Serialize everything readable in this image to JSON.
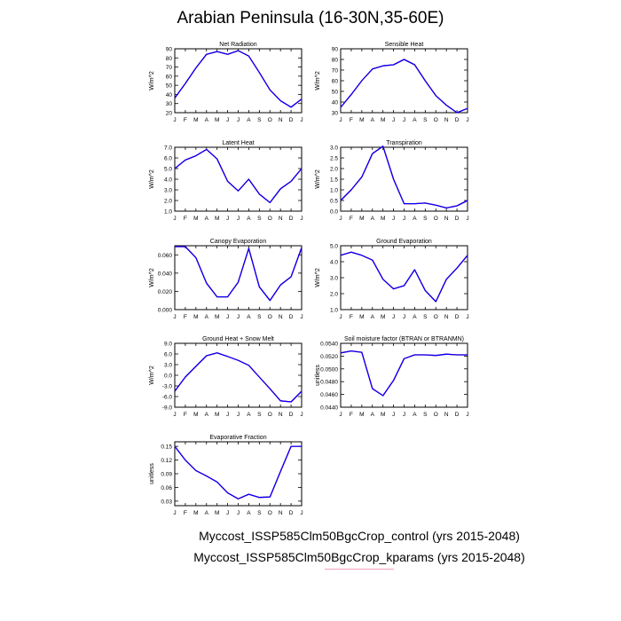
{
  "title": "Arabian Peninsula (16-30N,35-60E)",
  "line_colors": [
    "#ff0000",
    "#0000ff"
  ],
  "footer": {
    "line1": "Myccost_ISSP585Clm50BgcCrop_control (yrs 2015-2048)",
    "line2": "Myccost_ISSP585Clm50BgcCrop_kparams (yrs 2015-2048)"
  },
  "chart_data": [
    {
      "type": "line",
      "title": "Net Radiation",
      "ylabel": "W/m^2",
      "categories": [
        "J",
        "F",
        "M",
        "A",
        "M",
        "J",
        "J",
        "A",
        "S",
        "O",
        "N",
        "D",
        "J"
      ],
      "ylim": [
        20,
        90
      ],
      "yticks": [
        "90",
        "80",
        "70",
        "60",
        "50",
        "40",
        "30",
        "20"
      ],
      "series": [
        {
          "name": "control",
          "values": [
            36,
            52,
            69,
            84,
            87,
            84,
            88,
            82,
            64,
            45,
            33,
            26,
            35
          ]
        },
        {
          "name": "kparams",
          "values": [
            36,
            52,
            69,
            84,
            87,
            84,
            88,
            82,
            64,
            45,
            33,
            26,
            35
          ]
        }
      ]
    },
    {
      "type": "line",
      "title": "Sensible Heat",
      "ylabel": "W/m^2",
      "categories": [
        "J",
        "F",
        "M",
        "A",
        "M",
        "J",
        "J",
        "A",
        "S",
        "O",
        "N",
        "D",
        "J"
      ],
      "ylim": [
        30,
        90
      ],
      "yticks": [
        "90",
        "80",
        "70",
        "60",
        "50",
        "40",
        "30"
      ],
      "series": [
        {
          "name": "control",
          "values": [
            35,
            47,
            60,
            71,
            74,
            75,
            80,
            75,
            60,
            46,
            37,
            30,
            34
          ]
        },
        {
          "name": "kparams",
          "values": [
            35,
            47,
            60,
            71,
            74,
            75,
            80,
            75,
            60,
            46,
            37,
            30,
            34
          ]
        }
      ]
    },
    {
      "type": "line",
      "title": "Latent Heat",
      "ylabel": "W/m^2",
      "categories": [
        "J",
        "F",
        "M",
        "A",
        "M",
        "J",
        "J",
        "A",
        "S",
        "O",
        "N",
        "D",
        "J"
      ],
      "ylim": [
        1.0,
        7.0
      ],
      "yticks": [
        "7.0",
        "6.0",
        "5.0",
        "4.0",
        "3.0",
        "2.0",
        "1.0"
      ],
      "series": [
        {
          "name": "control",
          "values": [
            5.0,
            5.8,
            6.2,
            6.8,
            5.9,
            3.8,
            2.9,
            4.0,
            2.6,
            1.8,
            3.1,
            3.8,
            5.0
          ]
        },
        {
          "name": "kparams",
          "values": [
            5.0,
            5.8,
            6.2,
            6.8,
            5.9,
            3.8,
            2.9,
            4.0,
            2.6,
            1.8,
            3.1,
            3.8,
            5.0
          ]
        }
      ]
    },
    {
      "type": "line",
      "title": "Transpiration",
      "ylabel": "W/m^2",
      "categories": [
        "J",
        "F",
        "M",
        "A",
        "M",
        "J",
        "J",
        "A",
        "S",
        "O",
        "N",
        "D",
        "J"
      ],
      "ylim": [
        0.0,
        3.0
      ],
      "yticks": [
        "3.0",
        "2.5",
        "2.0",
        "1.5",
        "1.0",
        "0.5",
        "0.0"
      ],
      "series": [
        {
          "name": "control",
          "values": [
            0.5,
            1.0,
            1.6,
            2.7,
            3.05,
            1.5,
            0.35,
            0.35,
            0.38,
            0.28,
            0.15,
            0.25,
            0.5
          ]
        },
        {
          "name": "kparams",
          "values": [
            0.5,
            1.0,
            1.6,
            2.7,
            3.05,
            1.5,
            0.35,
            0.35,
            0.38,
            0.28,
            0.15,
            0.25,
            0.5
          ]
        }
      ]
    },
    {
      "type": "line",
      "title": "Canopy Evaporation",
      "ylabel": "W/m^2",
      "categories": [
        "J",
        "F",
        "M",
        "A",
        "M",
        "J",
        "J",
        "A",
        "S",
        "O",
        "N",
        "D",
        "J"
      ],
      "ylim": [
        0.0,
        0.07
      ],
      "yticks": [
        "0.060",
        "0.040",
        "0.020",
        "0.000"
      ],
      "ytick_values": [
        0.06,
        0.04,
        0.02,
        0.0
      ],
      "series": [
        {
          "name": "control",
          "values": [
            0.069,
            0.069,
            0.057,
            0.029,
            0.014,
            0.014,
            0.03,
            0.067,
            0.025,
            0.01,
            0.027,
            0.036,
            0.068
          ]
        },
        {
          "name": "kparams",
          "values": [
            0.069,
            0.069,
            0.057,
            0.029,
            0.014,
            0.014,
            0.03,
            0.067,
            0.025,
            0.01,
            0.027,
            0.036,
            0.068
          ]
        }
      ]
    },
    {
      "type": "line",
      "title": "Ground Evaporation",
      "ylabel": "W/m^2",
      "categories": [
        "J",
        "F",
        "M",
        "A",
        "M",
        "J",
        "J",
        "A",
        "S",
        "O",
        "N",
        "D",
        "J"
      ],
      "ylim": [
        1.0,
        5.0
      ],
      "yticks": [
        "5.0",
        "4.0",
        "3.0",
        "2.0",
        "1.0"
      ],
      "series": [
        {
          "name": "control",
          "values": [
            4.4,
            4.6,
            4.4,
            4.1,
            2.9,
            2.3,
            2.5,
            3.5,
            2.2,
            1.5,
            2.9,
            3.6,
            4.4
          ]
        },
        {
          "name": "kparams",
          "values": [
            4.4,
            4.6,
            4.4,
            4.1,
            2.9,
            2.3,
            2.5,
            3.5,
            2.2,
            1.5,
            2.9,
            3.6,
            4.4
          ]
        }
      ]
    },
    {
      "type": "line",
      "title": "Ground Heat + Snow Melt",
      "ylabel": "W/m^2",
      "categories": [
        "J",
        "F",
        "M",
        "A",
        "M",
        "J",
        "J",
        "A",
        "S",
        "O",
        "N",
        "D",
        "J"
      ],
      "ylim": [
        -9.0,
        9.0
      ],
      "yticks": [
        "9.0",
        "6.0",
        "3.0",
        "0.0",
        "-3.0",
        "-6.0",
        "-9.0"
      ],
      "series": [
        {
          "name": "control",
          "values": [
            -4.5,
            -0.5,
            2.5,
            5.5,
            6.3,
            5.3,
            4.2,
            2.8,
            -0.5,
            -3.8,
            -7.2,
            -7.5,
            -4.5
          ]
        },
        {
          "name": "kparams",
          "values": [
            -4.5,
            -0.5,
            2.5,
            5.5,
            6.3,
            5.3,
            4.2,
            2.8,
            -0.5,
            -3.8,
            -7.2,
            -7.5,
            -4.5
          ]
        }
      ]
    },
    {
      "type": "line",
      "title": "Soil moisture factor (BTRAN or BTRANMN)",
      "ylabel": "unitless",
      "categories": [
        "J",
        "F",
        "M",
        "A",
        "M",
        "J",
        "J",
        "A",
        "S",
        "O",
        "N",
        "D",
        "J"
      ],
      "ylim": [
        0.044,
        0.054
      ],
      "yticks": [
        "0.0540",
        "0.0520",
        "0.0500",
        "0.0480",
        "0.0460",
        "0.0440"
      ],
      "series": [
        {
          "name": "control",
          "values": [
            0.0525,
            0.0528,
            0.0526,
            0.0469,
            0.0458,
            0.0482,
            0.0516,
            0.0522,
            0.0522,
            0.0521,
            0.0523,
            0.0522,
            0.0522
          ]
        },
        {
          "name": "kparams",
          "values": [
            0.0525,
            0.0528,
            0.0526,
            0.0469,
            0.0458,
            0.0482,
            0.0516,
            0.0522,
            0.0522,
            0.0521,
            0.0523,
            0.0522,
            0.0522
          ]
        }
      ]
    },
    {
      "type": "line",
      "title": "Evaporative Fraction",
      "ylabel": "unitless",
      "categories": [
        "J",
        "F",
        "M",
        "A",
        "M",
        "J",
        "J",
        "A",
        "S",
        "O",
        "N",
        "D",
        "J"
      ],
      "ylim": [
        0.02,
        0.16
      ],
      "yticks": [
        "0.15",
        "0.12",
        "0.09",
        "0.06",
        "0.03"
      ],
      "series": [
        {
          "name": "control",
          "values": [
            0.15,
            0.12,
            0.097,
            0.085,
            0.072,
            0.048,
            0.035,
            0.045,
            0.038,
            0.039,
            0.095,
            0.15,
            0.15
          ]
        },
        {
          "name": "kparams",
          "values": [
            0.15,
            0.12,
            0.097,
            0.085,
            0.072,
            0.048,
            0.035,
            0.045,
            0.038,
            0.039,
            0.095,
            0.15,
            0.15
          ]
        }
      ]
    }
  ]
}
